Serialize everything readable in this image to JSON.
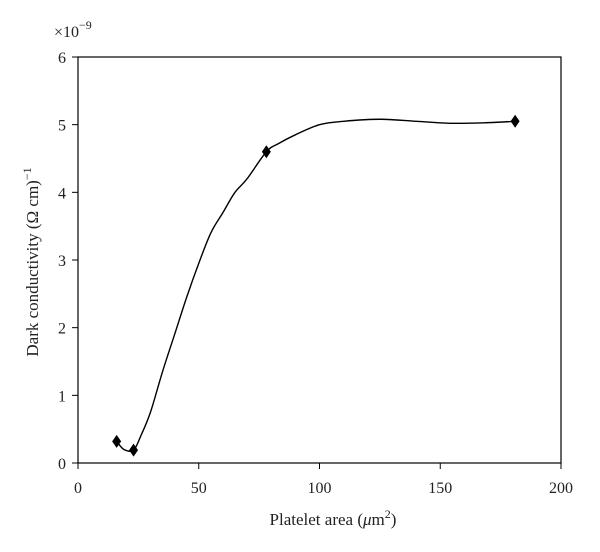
{
  "chart_data": {
    "type": "scatter",
    "title": "",
    "xlabel_main": "Platelet area (",
    "xlabel_mu": "μ",
    "xlabel_unit": "m",
    "xlabel_sup": "2",
    "xlabel_close": ")",
    "ylabel_main": "Dark conductivity (Ω cm)",
    "ylabel_sup": "−1",
    "y_multiplier_base": "×10",
    "y_multiplier_exp": "−9",
    "xlim": [
      0,
      200
    ],
    "ylim": [
      0,
      6
    ],
    "x_ticks": [
      "0",
      "50",
      "100",
      "150",
      "200"
    ],
    "y_ticks": [
      "0",
      "1",
      "2",
      "3",
      "4",
      "5",
      "6"
    ],
    "grid": false,
    "legend": "none",
    "series": [
      {
        "marker": "diamond",
        "x": [
          16,
          23,
          78,
          181
        ],
        "y": [
          0.32,
          0.19,
          4.6,
          5.05
        ]
      }
    ],
    "trend_curve": {
      "x": [
        16,
        19,
        23,
        26,
        30,
        35,
        40,
        45,
        50,
        55,
        60,
        65,
        70,
        78,
        83,
        90,
        100,
        110,
        125,
        140,
        155,
        170,
        181
      ],
      "y": [
        0.32,
        0.2,
        0.19,
        0.4,
        0.75,
        1.35,
        1.9,
        2.45,
        2.95,
        3.4,
        3.7,
        4.0,
        4.2,
        4.6,
        4.72,
        4.85,
        5.0,
        5.05,
        5.08,
        5.05,
        5.02,
        5.03,
        5.05
      ]
    },
    "colors": {
      "marks": "#000000",
      "axis": "#000000",
      "background": "#ffffff"
    }
  }
}
